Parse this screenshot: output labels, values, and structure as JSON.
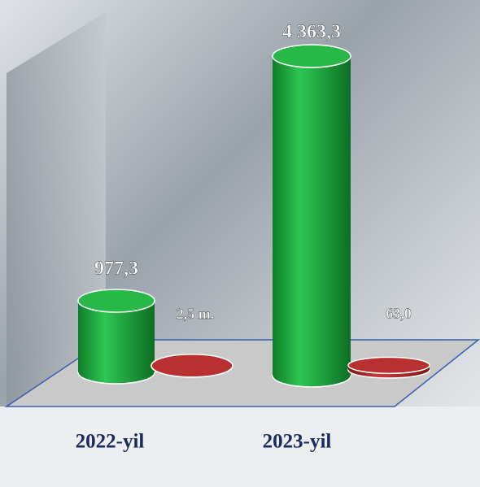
{
  "chart_data": {
    "type": "bar",
    "categories": [
      "2022-yil",
      "2023-yil"
    ],
    "series": [
      {
        "color": "#18a63a",
        "values": [
          977.3,
          4363.3
        ],
        "value_labels": [
          "977,3",
          "4 363,3"
        ]
      },
      {
        "color": "#b02a2a",
        "values": [
          2.5,
          63.0
        ],
        "value_labels": [
          "2,5 m.",
          "63,0"
        ]
      }
    ]
  }
}
